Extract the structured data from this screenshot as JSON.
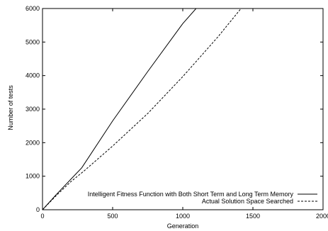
{
  "chart_data": {
    "type": "line",
    "title": "",
    "xlabel": "Generation",
    "ylabel": "Number of tests",
    "xlim": [
      0,
      2000
    ],
    "ylim": [
      0,
      6000
    ],
    "xticks": [
      0,
      500,
      1000,
      1500,
      2000
    ],
    "yticks": [
      0,
      1000,
      2000,
      3000,
      4000,
      5000,
      6000
    ],
    "grid": false,
    "legend_position": "bottom-right",
    "series": [
      {
        "name": "Intelligent Fitness Function with Both Short Term and Long Term Memory",
        "style": "solid",
        "color": "#000000",
        "x": [
          0,
          100,
          200,
          280,
          500,
          750,
          1000,
          1095
        ],
        "y": [
          0,
          460,
          900,
          1250,
          2650,
          4120,
          5550,
          6000
        ]
      },
      {
        "name": "Actual Solution Space Searched",
        "style": "dashed",
        "color": "#000000",
        "x": [
          0,
          100,
          200,
          300,
          500,
          750,
          1000,
          1250,
          1415
        ],
        "y": [
          0,
          430,
          830,
          1170,
          1900,
          2870,
          3970,
          5150,
          6000
        ]
      }
    ]
  }
}
